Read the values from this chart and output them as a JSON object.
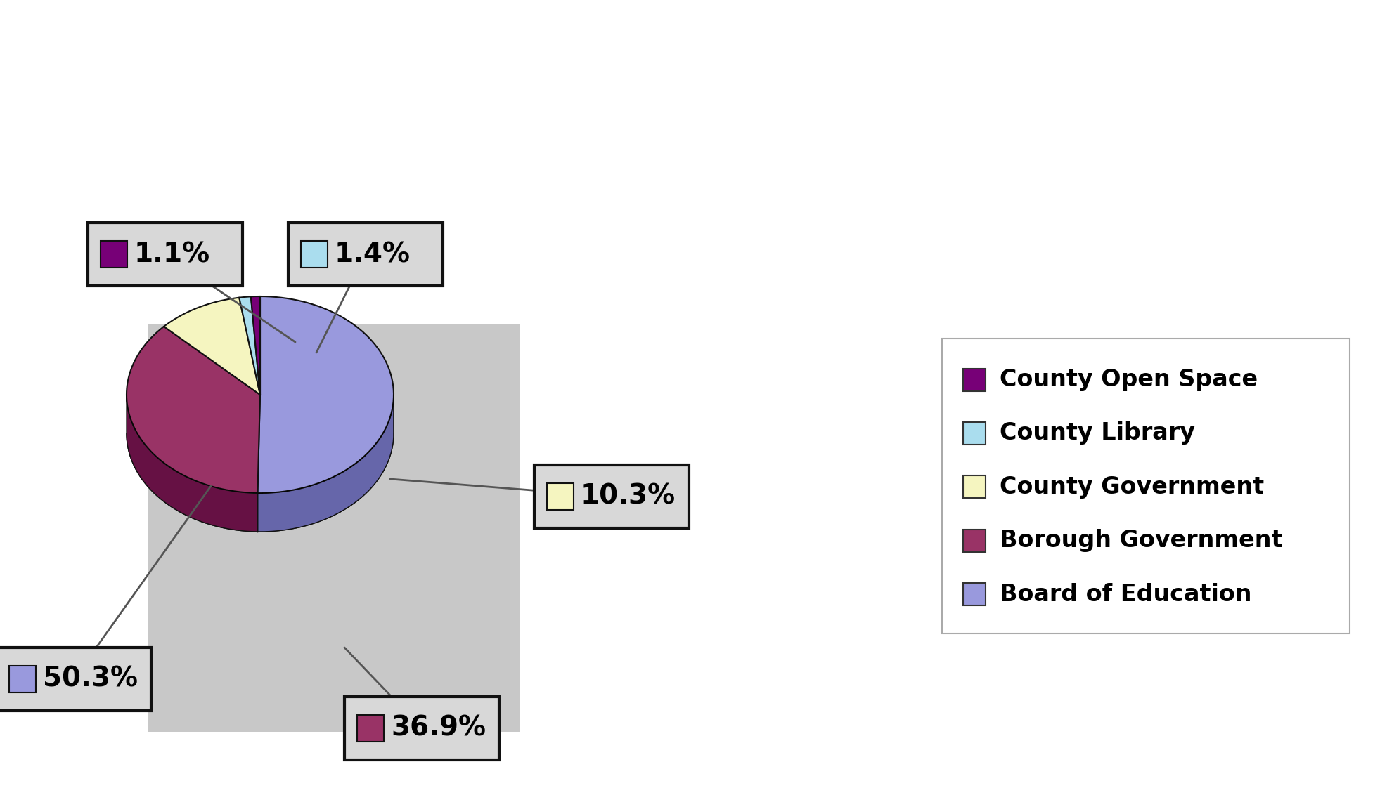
{
  "labels": [
    "Board of Education",
    "Borough Government",
    "County Government",
    "County Library",
    "County Open Space"
  ],
  "values": [
    50.3,
    36.9,
    10.3,
    1.4,
    1.1
  ],
  "colors": [
    "#9999dd",
    "#993366",
    "#f5f5c0",
    "#aaddee",
    "#770077"
  ],
  "side_colors": [
    "#6666aa",
    "#661144",
    "#c5c599",
    "#88aabb",
    "#440044"
  ],
  "startangle": 90,
  "annotation_labels": [
    "50.3%",
    "36.9%",
    "10.3%",
    "1.4%",
    "1.1%"
  ],
  "legend_labels": [
    "Board of Education",
    "Borough Government",
    "County Government",
    "County Library",
    "County Open Space"
  ],
  "legend_colors": [
    "#9999dd",
    "#993366",
    "#f5f5c0",
    "#aaddee",
    "#770077"
  ],
  "pie_bg": "#cccccc",
  "fig_bg": "#ffffff"
}
